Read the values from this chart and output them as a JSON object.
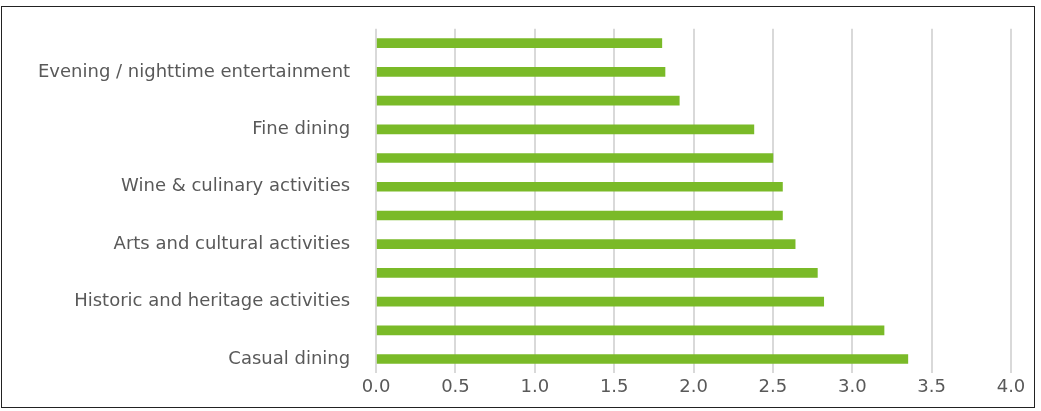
{
  "chart_data": {
    "type": "bar",
    "orientation": "horizontal",
    "categories": [
      null,
      "Evening / nighttime entertainment",
      null,
      "Fine dining",
      null,
      "Wine & culinary activities",
      null,
      "Arts and cultural activities",
      null,
      "Historic and heritage activities",
      null,
      "Casual dining"
    ],
    "values": [
      1.8,
      1.82,
      1.91,
      2.38,
      2.5,
      2.56,
      2.56,
      2.64,
      2.78,
      2.82,
      3.2,
      3.35
    ],
    "color": "#7aba28",
    "xlim": [
      0,
      4
    ],
    "xticks": [
      {
        "value": 0,
        "label": "0.0"
      },
      {
        "value": 0.5,
        "label": "0.5"
      },
      {
        "value": 1,
        "label": "1.0"
      },
      {
        "value": 1.5,
        "label": "1.5"
      },
      {
        "value": 2,
        "label": "2.0"
      },
      {
        "value": 2.5,
        "label": "2.5"
      },
      {
        "value": 3,
        "label": "3.0"
      },
      {
        "value": 3.5,
        "label": "3.5"
      },
      {
        "value": 4,
        "label": "4.0"
      }
    ],
    "grid": "x",
    "legend": false
  }
}
